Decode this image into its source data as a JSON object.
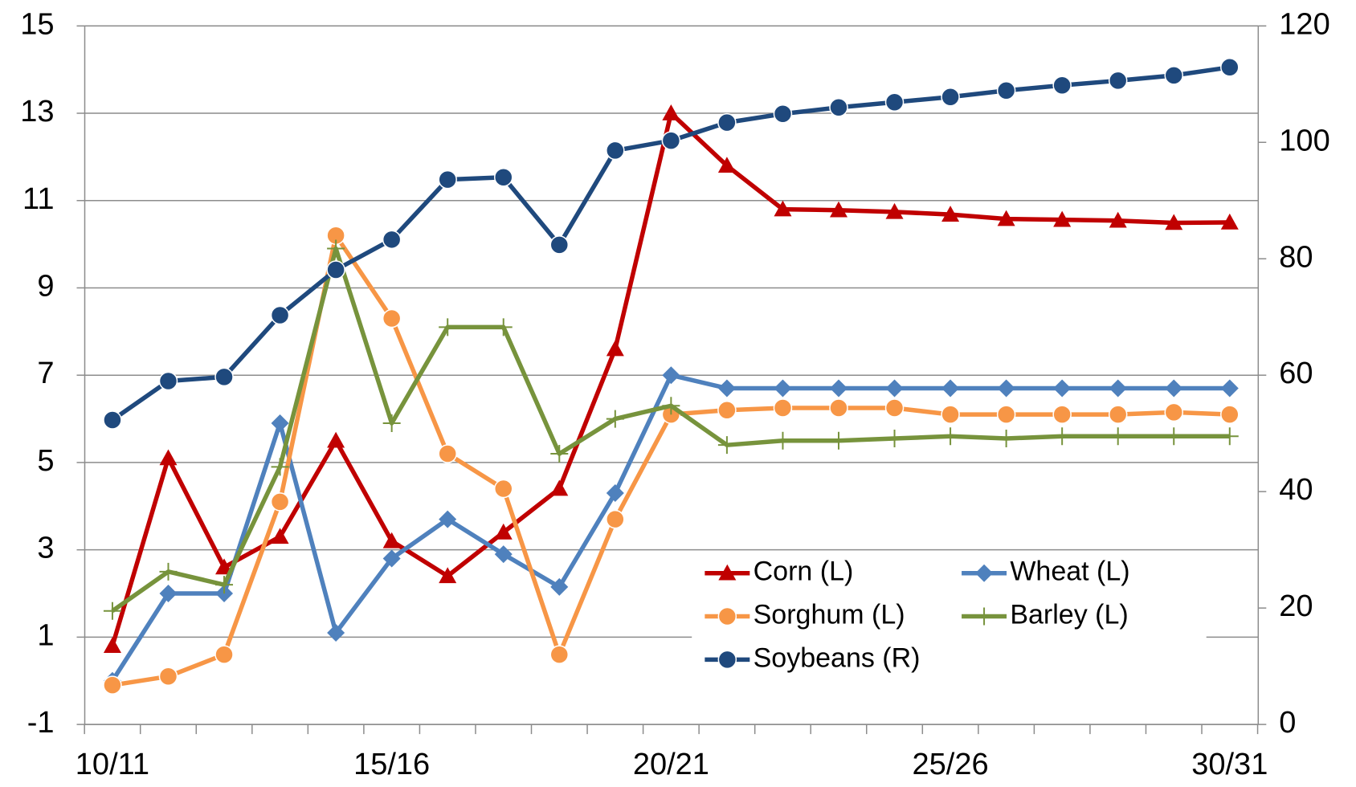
{
  "chart_data": {
    "type": "line",
    "categories": [
      "10/11",
      null,
      null,
      null,
      null,
      "15/16",
      null,
      null,
      null,
      null,
      "20/21",
      null,
      null,
      null,
      null,
      "25/26",
      null,
      null,
      null,
      null,
      "30/31"
    ],
    "series": [
      {
        "name": "Corn (L)",
        "color": "#c00000",
        "marker": "triangle",
        "values": [
          0.8,
          5.1,
          2.6,
          3.3,
          5.5,
          3.2,
          2.4,
          3.4,
          4.4,
          7.6,
          13.0,
          11.8,
          10.8,
          10.78,
          10.74,
          10.68,
          10.58,
          10.56,
          10.54,
          10.49,
          10.5
        ]
      },
      {
        "name": "Wheat (L)",
        "color": "#4f81bd",
        "marker": "diamond",
        "values": [
          0.0,
          2.0,
          2.0,
          5.9,
          1.1,
          2.8,
          3.7,
          2.9,
          2.15,
          4.3,
          7.0,
          6.7,
          6.7,
          6.7,
          6.7,
          6.7,
          6.7,
          6.7,
          6.7,
          6.7,
          6.7
        ]
      },
      {
        "name": "Sorghum (L)",
        "color": "#f79646",
        "marker": "circle",
        "values": [
          -0.1,
          0.1,
          0.6,
          4.1,
          10.2,
          8.3,
          5.2,
          4.4,
          0.6,
          3.7,
          6.1,
          6.2,
          6.25,
          6.25,
          6.25,
          6.1,
          6.1,
          6.1,
          6.1,
          6.15,
          6.1
        ]
      },
      {
        "name": "Barley (L)",
        "color": "#77933c",
        "marker": "plus",
        "values": [
          1.6,
          2.5,
          2.2,
          4.9,
          9.9,
          5.9,
          8.1,
          8.1,
          5.2,
          6.0,
          6.3,
          5.4,
          5.5,
          5.5,
          5.55,
          5.6,
          5.55,
          5.6,
          5.6,
          5.6,
          5.6
        ]
      },
      {
        "name": "Soybeans (R)",
        "color": "#1f497d",
        "marker": "circle",
        "axis": "y2",
        "values": [
          52.3,
          59.0,
          59.7,
          70.3,
          78.1,
          83.3,
          93.6,
          94.0,
          82.4,
          98.6,
          100.3,
          103.4,
          104.9,
          106.0,
          106.9,
          107.8,
          108.9,
          109.8,
          110.6,
          111.5,
          112.9
        ]
      }
    ],
    "ylim": [
      -1,
      15
    ],
    "yticks": [
      -1,
      1,
      3,
      5,
      7,
      9,
      11,
      13,
      15
    ],
    "y2lim": [
      0,
      120
    ],
    "y2ticks": [
      0,
      20,
      40,
      60,
      80,
      100,
      120
    ],
    "grid": true,
    "legend": "lower right"
  }
}
